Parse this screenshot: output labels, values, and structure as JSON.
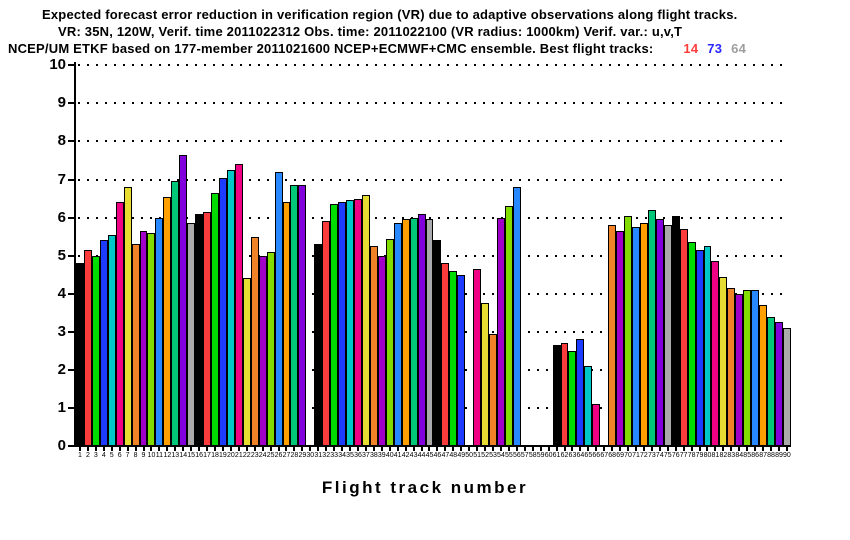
{
  "title": {
    "line1": "Expected forecast error reduction in verification region (VR) due to adaptive observations along flight tracks.",
    "line2": "VR: 35N, 120W, Verif. time 2011022312 Obs. time: 2011022100 (VR radius: 1000km)  Verif. var.: u,v,T",
    "line3": "NCEP/UM ETKF based on 177-member 2011021600 NCEP+ECMWF+CMC ensemble. Best flight tracks:",
    "best_tracks": [
      {
        "label": "14",
        "color": "#ff3c3c"
      },
      {
        "label": "73",
        "color": "#2929ff"
      },
      {
        "label": "64",
        "color": "#9e9e9e"
      }
    ]
  },
  "chart_data": {
    "type": "bar",
    "title": "Expected forecast error reduction in verification region (VR) due to adaptive observations along flight tracks.",
    "subtitle1": "VR: 35N, 120W, Verif. time 2011022312 Obs. time: 2011022100 (VR radius: 1000km)  Verif. var.: u,v,T",
    "subtitle2": "NCEP/UM ETKF based on 177-member 2011021600 NCEP+ECMWF+CMC ensemble. Best flight tracks: 14 73 64",
    "xlabel": "Flight track number",
    "ylabel": "",
    "ylim": [
      0,
      10
    ],
    "yticks": [
      0,
      1,
      2,
      3,
      4,
      5,
      6,
      7,
      8,
      9,
      10
    ],
    "grid": "dotted horizontal lines at every integer 1-10",
    "legend": "none",
    "categories": [
      1,
      2,
      3,
      4,
      5,
      6,
      7,
      8,
      9,
      10,
      11,
      12,
      13,
      14,
      15,
      16,
      17,
      18,
      19,
      20,
      21,
      22,
      23,
      24,
      25,
      26,
      27,
      28,
      29,
      30,
      31,
      32,
      33,
      34,
      35,
      36,
      37,
      38,
      39,
      40,
      41,
      42,
      43,
      44,
      45,
      46,
      47,
      48,
      49,
      50,
      51,
      52,
      53,
      54,
      55,
      56,
      57,
      58,
      59,
      60,
      61,
      62,
      63,
      64,
      65,
      66,
      67,
      68,
      69,
      70,
      71,
      72,
      73,
      74,
      75,
      76,
      77,
      78,
      79,
      80,
      81,
      82,
      83,
      84,
      85,
      86,
      87,
      88,
      89,
      90
    ],
    "values": [
      4.8,
      5.15,
      5.0,
      5.4,
      5.55,
      6.4,
      6.8,
      5.3,
      5.65,
      5.6,
      6.0,
      6.55,
      6.95,
      7.65,
      5.85,
      6.1,
      6.15,
      6.65,
      7.05,
      7.25,
      7.4,
      4.4,
      5.5,
      5.0,
      5.1,
      7.2,
      6.4,
      6.85,
      6.85,
      0,
      5.3,
      5.9,
      6.35,
      6.4,
      6.45,
      6.5,
      6.6,
      5.25,
      5.0,
      5.45,
      5.85,
      5.95,
      6.0,
      6.1,
      5.95,
      5.4,
      4.8,
      4.6,
      4.5,
      0,
      4.65,
      3.75,
      2.95,
      6.0,
      6.3,
      6.8,
      0,
      0,
      0,
      0,
      2.65,
      2.7,
      2.5,
      2.8,
      2.1,
      1.1,
      0,
      5.8,
      5.65,
      6.05,
      5.75,
      5.85,
      6.2,
      5.95,
      5.8,
      6.05,
      5.7,
      5.35,
      5.15,
      5.25,
      4.85,
      4.45,
      4.15,
      4.0,
      4.1,
      4.1,
      3.7,
      3.4,
      3.25,
      3.1
    ],
    "missing_tracks": [
      30,
      50,
      57,
      58,
      59,
      60,
      67
    ],
    "bar_color_cycle": [
      "#000000",
      "#fa3c3c",
      "#00dc00",
      "#1e3cff",
      "#00c8c8",
      "#f00082",
      "#e6dc32",
      "#f08228",
      "#a000c8",
      "#82dc00",
      "#2888ff",
      "#ffa000",
      "#00c878",
      "#8200dc",
      "#aaaaaa"
    ],
    "bar_color_cycle_names": [
      "black",
      "red",
      "green",
      "blue",
      "cyan",
      "magenta",
      "yellow",
      "orange",
      "purple",
      "yellow-green",
      "sky-blue",
      "gold",
      "aqua-green",
      "dark-purple",
      "gray"
    ]
  }
}
